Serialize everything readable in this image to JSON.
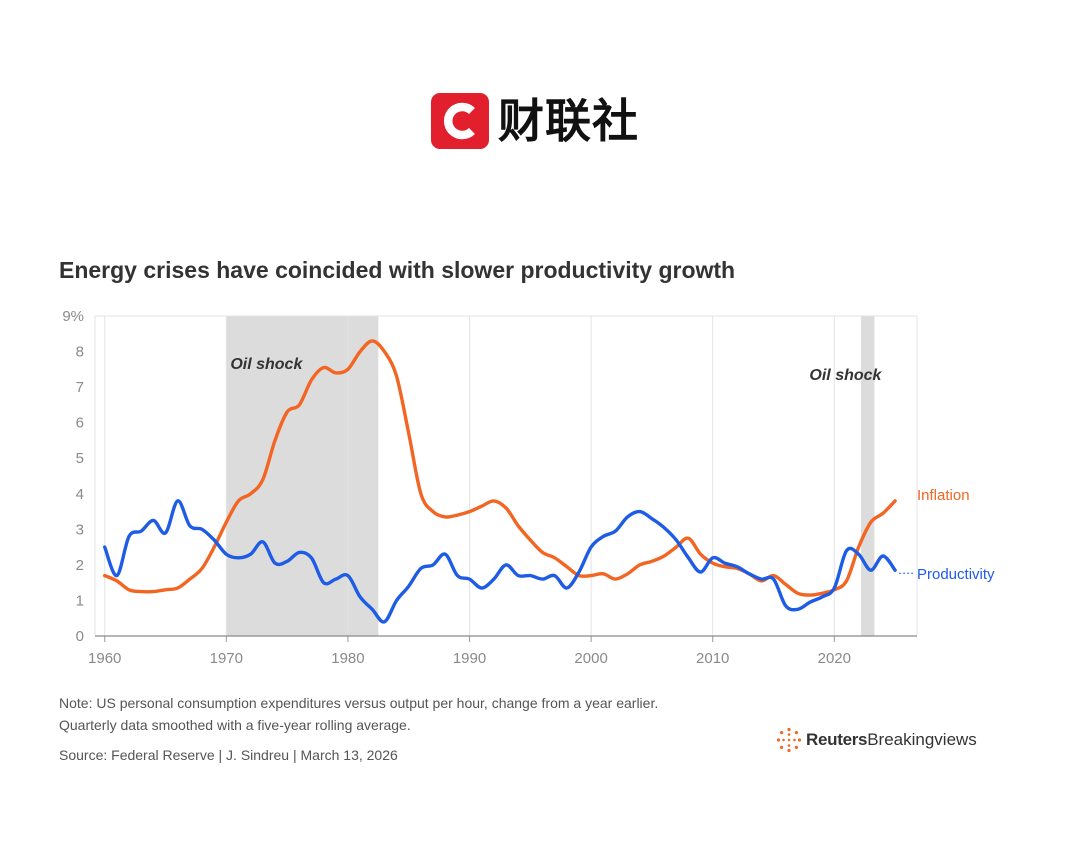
{
  "header": {
    "logo_letter": "C",
    "logo_text": "财联社"
  },
  "chart_data": {
    "type": "line",
    "title": "Energy crises have coincided with slower productivity growth",
    "xlabel": "",
    "ylabel": "",
    "xlim": [
      1959.2,
      2026.8
    ],
    "ylim": [
      0,
      9
    ],
    "x_ticks": [
      "1960",
      "1970",
      "1980",
      "1990",
      "2000",
      "2010",
      "2020"
    ],
    "y_ticks": [
      "0",
      "1",
      "2",
      "3",
      "4",
      "5",
      "6",
      "7",
      "8",
      "9%"
    ],
    "grid": "vertical",
    "shaded_periods": [
      {
        "label": "Oil shock",
        "start": 1970.0,
        "end": 1982.5
      },
      {
        "label": "Oil shock",
        "start": 2022.2,
        "end": 2023.3
      }
    ],
    "colors": {
      "inflation": "#f26522",
      "productivity": "#1f5ce6",
      "shade": "#dcdcdc"
    },
    "series": [
      {
        "name": "Inflation",
        "x": [
          1960,
          1961,
          1962,
          1963,
          1964,
          1965,
          1966,
          1967,
          1968,
          1969,
          1970,
          1971,
          1972,
          1973,
          1974,
          1975,
          1976,
          1977,
          1978,
          1979,
          1980,
          1981,
          1982,
          1983,
          1984,
          1985,
          1986,
          1987,
          1988,
          1989,
          1990,
          1991,
          1992,
          1993,
          1994,
          1995,
          1996,
          1997,
          1998,
          1999,
          2000,
          2001,
          2002,
          2003,
          2004,
          2005,
          2006,
          2007,
          2008,
          2009,
          2010,
          2011,
          2012,
          2013,
          2014,
          2015,
          2016,
          2017,
          2018,
          2019,
          2020,
          2021,
          2022,
          2023,
          2024,
          2025
        ],
        "values": [
          1.7,
          1.55,
          1.3,
          1.25,
          1.25,
          1.3,
          1.35,
          1.6,
          1.9,
          2.5,
          3.2,
          3.8,
          4.0,
          4.4,
          5.5,
          6.3,
          6.5,
          7.2,
          7.55,
          7.4,
          7.5,
          8.0,
          8.3,
          8.0,
          7.3,
          5.7,
          4.0,
          3.5,
          3.35,
          3.4,
          3.5,
          3.65,
          3.8,
          3.6,
          3.1,
          2.7,
          2.35,
          2.2,
          1.95,
          1.7,
          1.7,
          1.75,
          1.6,
          1.75,
          2.0,
          2.1,
          2.25,
          2.5,
          2.75,
          2.3,
          2.05,
          1.95,
          1.9,
          1.75,
          1.55,
          1.7,
          1.45,
          1.2,
          1.15,
          1.2,
          1.3,
          1.55,
          2.5,
          3.2,
          3.45,
          3.8
        ]
      },
      {
        "name": "Productivity",
        "x": [
          1960,
          1961,
          1962,
          1963,
          1964,
          1965,
          1966,
          1967,
          1968,
          1969,
          1970,
          1971,
          1972,
          1973,
          1974,
          1975,
          1976,
          1977,
          1978,
          1979,
          1980,
          1981,
          1982,
          1983,
          1984,
          1985,
          1986,
          1987,
          1988,
          1989,
          1990,
          1991,
          1992,
          1993,
          1994,
          1995,
          1996,
          1997,
          1998,
          1999,
          2000,
          2001,
          2002,
          2003,
          2004,
          2005,
          2006,
          2007,
          2008,
          2009,
          2010,
          2011,
          2012,
          2013,
          2014,
          2015,
          2016,
          2017,
          2018,
          2019,
          2020,
          2021,
          2022,
          2023,
          2024,
          2025
        ],
        "values": [
          2.5,
          1.7,
          2.8,
          2.95,
          3.25,
          2.9,
          3.8,
          3.1,
          3.0,
          2.7,
          2.3,
          2.2,
          2.3,
          2.65,
          2.05,
          2.1,
          2.35,
          2.2,
          1.5,
          1.6,
          1.7,
          1.1,
          0.75,
          0.4,
          1.0,
          1.4,
          1.9,
          2.0,
          2.3,
          1.7,
          1.6,
          1.35,
          1.6,
          2.0,
          1.7,
          1.7,
          1.6,
          1.7,
          1.35,
          1.8,
          2.5,
          2.8,
          2.95,
          3.35,
          3.5,
          3.3,
          3.05,
          2.7,
          2.2,
          1.8,
          2.2,
          2.05,
          1.95,
          1.75,
          1.6,
          1.6,
          0.85,
          0.75,
          0.95,
          1.1,
          1.35,
          2.4,
          2.3,
          1.85,
          2.25,
          1.85
        ]
      }
    ]
  },
  "notes": {
    "line1": "Note: US personal consumption expenditures versus output per hour, change from a year earlier.",
    "line2": "Quarterly data smoothed with a five-year rolling average.",
    "source": "Source: Federal Reserve | J. Sindreu | March 13, 2026"
  },
  "brand": {
    "name_bold": "Reuters",
    "name_regular": "Breakingviews"
  }
}
